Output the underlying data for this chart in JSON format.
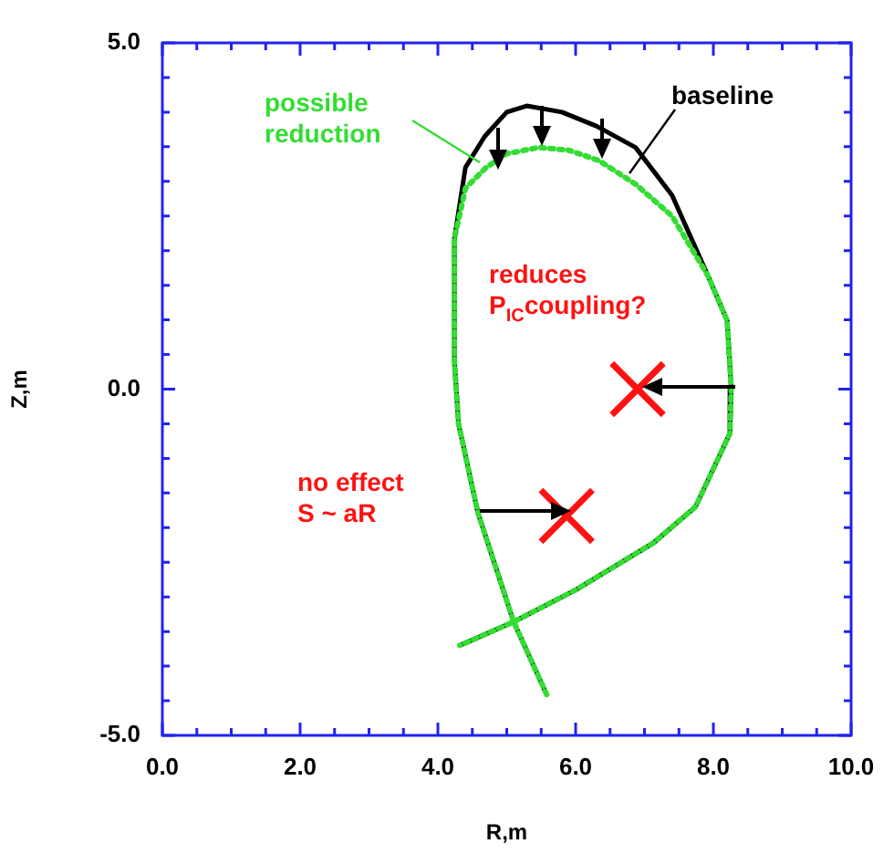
{
  "chart_data": {
    "type": "line",
    "xlabel": "R,m",
    "ylabel": "Z,m",
    "xlim": [
      0,
      10
    ],
    "ylim": [
      -5,
      5
    ],
    "xticks": [
      {
        "value": 0,
        "label": "0.0"
      },
      {
        "value": 0.5,
        "label": null
      },
      {
        "value": 1,
        "label": null
      },
      {
        "value": 1.5,
        "label": null
      },
      {
        "value": 2,
        "label": "2.0"
      },
      {
        "value": 2.5,
        "label": null
      },
      {
        "value": 3,
        "label": null
      },
      {
        "value": 3.5,
        "label": null
      },
      {
        "value": 4,
        "label": "4.0"
      },
      {
        "value": 4.5,
        "label": null
      },
      {
        "value": 5,
        "label": null
      },
      {
        "value": 5.5,
        "label": null
      },
      {
        "value": 6,
        "label": "6.0"
      },
      {
        "value": 6.5,
        "label": null
      },
      {
        "value": 7,
        "label": null
      },
      {
        "value": 7.5,
        "label": null
      },
      {
        "value": 8,
        "label": "8.0"
      },
      {
        "value": 8.5,
        "label": null
      },
      {
        "value": 9,
        "label": null
      },
      {
        "value": 9.5,
        "label": null
      },
      {
        "value": 10,
        "label": "10.0"
      }
    ],
    "yticks": [
      {
        "value": -5,
        "label": "-5.0"
      },
      {
        "value": -4.5,
        "label": null
      },
      {
        "value": -4,
        "label": null
      },
      {
        "value": -3.5,
        "label": null
      },
      {
        "value": -3,
        "label": null
      },
      {
        "value": -2.5,
        "label": null
      },
      {
        "value": -2,
        "label": null
      },
      {
        "value": -1.5,
        "label": null
      },
      {
        "value": -1,
        "label": null
      },
      {
        "value": -0.5,
        "label": null
      },
      {
        "value": 0,
        "label": "0.0"
      },
      {
        "value": 0.5,
        "label": null
      },
      {
        "value": 1,
        "label": null
      },
      {
        "value": 1.5,
        "label": null
      },
      {
        "value": 2,
        "label": null
      },
      {
        "value": 2.5,
        "label": null
      },
      {
        "value": 3,
        "label": null
      },
      {
        "value": 3.5,
        "label": null
      },
      {
        "value": 4,
        "label": null
      },
      {
        "value": 4.5,
        "label": null
      },
      {
        "value": 5,
        "label": "5.0"
      }
    ],
    "series": [
      {
        "color": "#33dd33",
        "line_style": "dotted",
        "marker": "none",
        "x": [
          5.58,
          5.1,
          4.58,
          4.3,
          4.24,
          4.24,
          4.4,
          4.7,
          5.0,
          5.47,
          5.9,
          6.34,
          6.87,
          7.4,
          7.92,
          8.2,
          8.26,
          8.24,
          7.74,
          7.13,
          6.0,
          5.1,
          4.32
        ],
        "values": [
          -4.41,
          -3.36,
          -1.78,
          -0.5,
          0.41,
          2.17,
          2.9,
          3.2,
          3.4,
          3.49,
          3.45,
          3.3,
          2.96,
          2.5,
          1.64,
          0.99,
          0.0,
          -0.64,
          -1.7,
          -2.22,
          -2.9,
          -3.36,
          -3.7
        ]
      },
      {
        "color": "#000000",
        "line_style": "solid",
        "marker": "none",
        "x": [
          5.58,
          5.1,
          4.58,
          4.3,
          4.24,
          4.24,
          4.4,
          4.68,
          5.0,
          5.29,
          5.8,
          6.3,
          6.87,
          7.4,
          7.92,
          8.2,
          8.26,
          8.24,
          7.74,
          7.13,
          6.0,
          5.1,
          4.32
        ],
        "values": [
          -4.41,
          -3.36,
          -1.78,
          -0.5,
          0.41,
          2.17,
          3.2,
          3.65,
          4.0,
          4.09,
          4.0,
          3.8,
          3.49,
          2.8,
          1.64,
          0.99,
          0.0,
          -0.64,
          -1.7,
          -2.22,
          -2.9,
          -3.36,
          -3.7
        ]
      },
      {
        "type": "scatter",
        "color": "#ff1111",
        "marker": "cross",
        "x": [
          6.9,
          5.87
        ],
        "values": [
          0.0,
          -1.83
        ]
      }
    ],
    "grid": false,
    "legend": false,
    "annotations": [
      "possible\nreduction",
      "baseline",
      "reduces\nP$_{IC}$coupling?",
      "no effect\nS ~ aR"
    ]
  }
}
